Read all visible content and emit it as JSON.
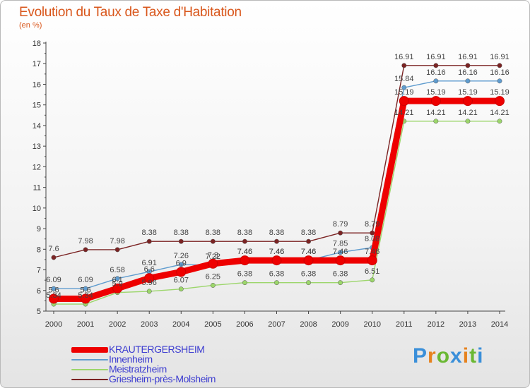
{
  "title": "Evolution du Taux de Taxe d'Habitation",
  "subtitle": "(en %)",
  "brand": "Proxiti",
  "colors": {
    "title": "#d9571c",
    "legend_text": "#3c3cd0",
    "axis": "#444444"
  },
  "chart_data": {
    "type": "line",
    "x": [
      "2000",
      "2001",
      "2002",
      "2003",
      "2004",
      "2005",
      "2006",
      "2007",
      "2008",
      "2009",
      "2010",
      "2011",
      "2012",
      "2013",
      "2014"
    ],
    "ylim": [
      5,
      18
    ],
    "yticks": [
      5,
      6,
      7,
      8,
      9,
      10,
      11,
      12,
      13,
      14,
      15,
      16,
      17,
      18
    ],
    "grid": false,
    "legend_position": "bottom-left",
    "series": [
      {
        "name": "Griesheim-près-Molsheim",
        "color": "#7b2323",
        "values": [
          7.6,
          7.98,
          7.98,
          8.38,
          8.38,
          8.38,
          8.38,
          8.38,
          8.38,
          8.79,
          8.79,
          16.91,
          16.91,
          16.91,
          16.91
        ],
        "labels": [
          "7.6",
          "7.98",
          "7.98",
          "8.38",
          "8.38",
          "8.38",
          "8.38",
          "8.38",
          "8.38",
          "8.79",
          "8.79",
          "16.91",
          "16.91",
          "16.91",
          "16.91"
        ]
      },
      {
        "name": "Innenheim",
        "color": "#5f9ccf",
        "values": [
          6.09,
          6.09,
          6.58,
          6.91,
          7.26,
          7.22,
          7.46,
          7.46,
          7.46,
          7.85,
          8.08,
          15.84,
          16.16,
          16.16,
          16.16
        ],
        "labels": [
          "6.09",
          "6.09",
          "6.58",
          "6.91",
          "7.26",
          "7.22",
          "7.46",
          "7.46",
          "7.46",
          "7.85",
          "8.08",
          "15.84",
          "16.16",
          "16.16",
          "16.16"
        ]
      },
      {
        "name": "Meistratzheim",
        "color": "#9cd66b",
        "values": [
          5.34,
          5.34,
          5.9,
          5.96,
          6.07,
          6.25,
          6.38,
          6.38,
          6.38,
          6.38,
          6.51,
          14.21,
          14.21,
          14.21,
          14.21
        ],
        "labels": [
          "5.34",
          "5.34",
          "5.9",
          "5.96",
          "6.07",
          "6.25",
          "6.38",
          "6.38",
          "6.38",
          "6.38",
          "6.51",
          "14.21",
          "14.21",
          "14.21",
          "14.21"
        ]
      },
      {
        "name": "KRAUTERGERSHEIM",
        "color": "#ee0000",
        "values": [
          5.6,
          5.6,
          6.1,
          6.6,
          6.9,
          7.3,
          7.46,
          7.46,
          7.46,
          7.46,
          7.46,
          15.19,
          15.19,
          15.19,
          15.19
        ],
        "labels": [
          "5.6",
          "5.6",
          "6.1",
          "6.6",
          "6.9",
          "7.3",
          "7.46",
          "7.46",
          "7.46",
          "7.46",
          "7.46",
          "15.19",
          "15.19",
          "15.19",
          "15.19"
        ]
      }
    ]
  },
  "legend": [
    {
      "label": "KRAUTERGERSHEIM",
      "color": "#ee0000"
    },
    {
      "label": "Innenheim",
      "color": "#5f9ccf"
    },
    {
      "label": "Meistratzheim",
      "color": "#9cd66b"
    },
    {
      "label": "Griesheim-près-Molsheim",
      "color": "#7b2323"
    }
  ]
}
